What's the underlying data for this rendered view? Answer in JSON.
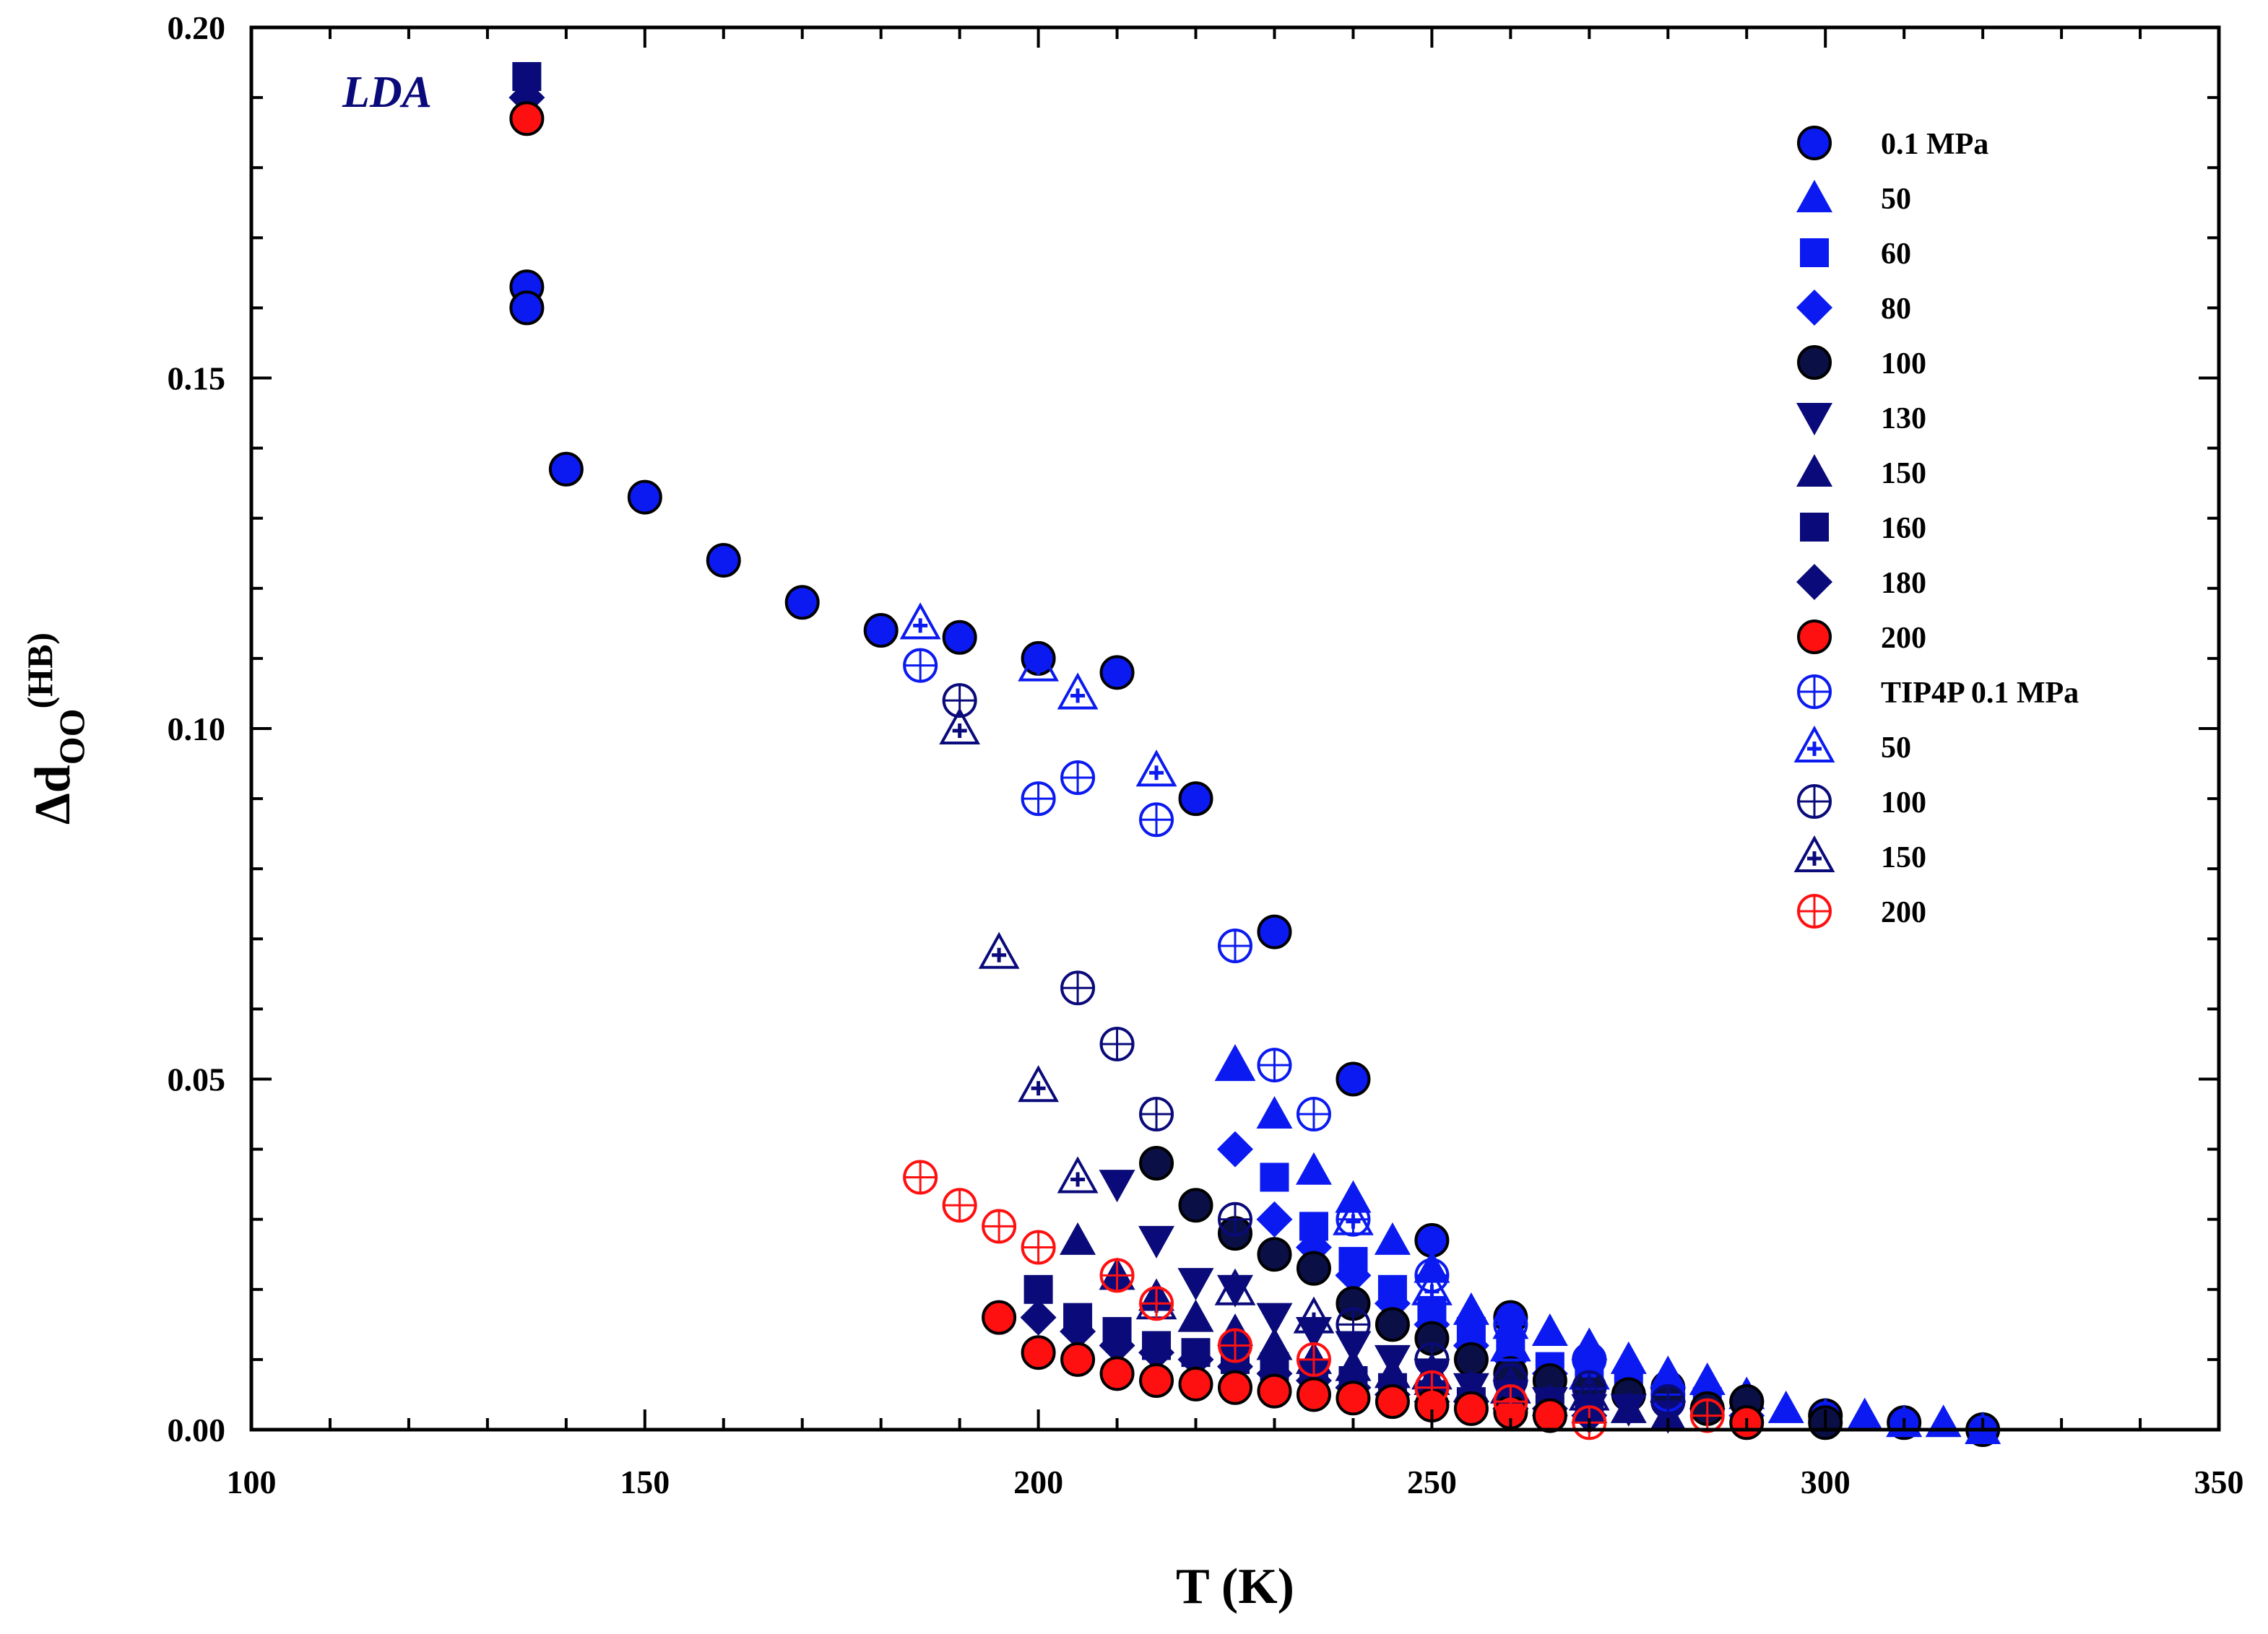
{
  "chart_data": {
    "type": "scatter",
    "title": "",
    "xlabel": "T (K)",
    "ylabel_main": "Δd",
    "ylabel_sub": "OO",
    "ylabel_sup": "(HB)",
    "xlim": [
      100,
      350
    ],
    "ylim": [
      0.0,
      0.2
    ],
    "x_ticks": [
      100,
      150,
      200,
      250,
      300,
      350
    ],
    "x_tick_labels": [
      "100",
      "150",
      "200",
      "250",
      "300",
      "350"
    ],
    "y_ticks": [
      0.0,
      0.05,
      0.1,
      0.15,
      0.2
    ],
    "y_tick_labels": [
      "0.00",
      "0.05",
      "0.10",
      "0.15",
      "0.20"
    ],
    "grid": false,
    "legend_position": "top-right",
    "annotation": "LDA",
    "colors": {
      "blue": "#0a1af0",
      "navy": "#0a0a7a",
      "red": "#ff1010",
      "darkNavy": "#0a1045"
    },
    "series": [
      {
        "name": "0.1 MPa",
        "marker": "circle",
        "fill": "#0a1af0",
        "edge": "#000000",
        "x": [
          135,
          135,
          140,
          150,
          160,
          170,
          180,
          190,
          200,
          210,
          220,
          230,
          240,
          250,
          260,
          270,
          280,
          290,
          300,
          310,
          320
        ],
        "y": [
          0.163,
          0.16,
          0.137,
          0.133,
          0.124,
          0.118,
          0.114,
          0.113,
          0.11,
          0.108,
          0.09,
          0.071,
          0.05,
          0.027,
          0.016,
          0.01,
          0.006,
          0.004,
          0.002,
          0.001,
          0.0
        ]
      },
      {
        "name": "50",
        "marker": "triangle-up",
        "fill": "#0a1af0",
        "edge": "none",
        "x": [
          225,
          230,
          235,
          240,
          245,
          250,
          255,
          260,
          265,
          270,
          275,
          280,
          285,
          290,
          295,
          300,
          305,
          310,
          315,
          320
        ],
        "y": [
          0.052,
          0.045,
          0.037,
          0.033,
          0.027,
          0.023,
          0.017,
          0.015,
          0.014,
          0.012,
          0.01,
          0.008,
          0.007,
          0.005,
          0.003,
          0.002,
          0.002,
          0.001,
          0.001,
          0.0
        ]
      },
      {
        "name": "60",
        "marker": "square",
        "fill": "#0a1af0",
        "edge": "none",
        "x": [
          230,
          235,
          240,
          245,
          250,
          255,
          260,
          265,
          270,
          275,
          280,
          285
        ],
        "y": [
          0.036,
          0.029,
          0.024,
          0.02,
          0.017,
          0.014,
          0.011,
          0.009,
          0.007,
          0.006,
          0.005,
          0.004
        ]
      },
      {
        "name": "80",
        "marker": "diamond",
        "fill": "#0a1af0",
        "edge": "none",
        "x": [
          225,
          230,
          235,
          240,
          245,
          250,
          255,
          260,
          265,
          270,
          275,
          280,
          285,
          290
        ],
        "y": [
          0.04,
          0.03,
          0.026,
          0.022,
          0.018,
          0.015,
          0.012,
          0.01,
          0.008,
          0.006,
          0.005,
          0.004,
          0.003,
          0.002
        ]
      },
      {
        "name": "100",
        "marker": "circle",
        "fill": "#0a1045",
        "edge": "#000000",
        "x": [
          215,
          220,
          225,
          230,
          235,
          240,
          245,
          250,
          255,
          260,
          265,
          270,
          275,
          280,
          285,
          290,
          300
        ],
        "y": [
          0.038,
          0.032,
          0.028,
          0.025,
          0.023,
          0.018,
          0.015,
          0.013,
          0.01,
          0.008,
          0.007,
          0.006,
          0.005,
          0.004,
          0.003,
          0.004,
          0.001
        ]
      },
      {
        "name": "130",
        "marker": "triangle-down",
        "fill": "#0a0a7a",
        "edge": "none",
        "x": [
          210,
          215,
          220,
          225,
          230,
          235,
          240,
          245,
          250,
          255,
          260,
          265,
          270,
          275,
          280
        ],
        "y": [
          0.035,
          0.027,
          0.021,
          0.02,
          0.016,
          0.014,
          0.012,
          0.01,
          0.008,
          0.006,
          0.005,
          0.004,
          0.003,
          0.003,
          0.002
        ]
      },
      {
        "name": "150",
        "marker": "triangle-up",
        "fill": "#0a0a7a",
        "edge": "none",
        "x": [
          205,
          210,
          215,
          220,
          225,
          230,
          235,
          240,
          245,
          250,
          255,
          260,
          265,
          270,
          275,
          280
        ],
        "y": [
          0.027,
          0.022,
          0.019,
          0.016,
          0.014,
          0.012,
          0.01,
          0.009,
          0.008,
          0.007,
          0.006,
          0.005,
          0.004,
          0.003,
          0.003,
          0.002
        ]
      },
      {
        "name": "160",
        "marker": "square",
        "fill": "#0a0a7a",
        "edge": "none",
        "x": [
          135,
          200,
          205,
          210,
          215,
          220,
          225,
          230,
          235,
          240,
          245,
          250,
          255,
          260,
          265,
          270
        ],
        "y": [
          0.193,
          0.02,
          0.016,
          0.014,
          0.012,
          0.011,
          0.01,
          0.009,
          0.008,
          0.007,
          0.006,
          0.005,
          0.004,
          0.004,
          0.003,
          0.003
        ]
      },
      {
        "name": "180",
        "marker": "diamond",
        "fill": "#0a0a7a",
        "edge": "none",
        "x": [
          135,
          200,
          205,
          210,
          215,
          220,
          225,
          230,
          235,
          240,
          245,
          250,
          255,
          260,
          265,
          270
        ],
        "y": [
          0.19,
          0.016,
          0.014,
          0.012,
          0.011,
          0.01,
          0.009,
          0.008,
          0.007,
          0.006,
          0.005,
          0.004,
          0.004,
          0.003,
          0.003,
          0.002
        ]
      },
      {
        "name": "200",
        "marker": "circle",
        "fill": "#ff1010",
        "edge": "#000000",
        "x": [
          135,
          195,
          200,
          205,
          210,
          215,
          220,
          225,
          230,
          235,
          240,
          245,
          250,
          255,
          260,
          265,
          290
        ],
        "y": [
          0.187,
          0.016,
          0.011,
          0.01,
          0.008,
          0.007,
          0.0065,
          0.006,
          0.0055,
          0.005,
          0.0045,
          0.004,
          0.0035,
          0.003,
          0.0025,
          0.002,
          0.001
        ]
      },
      {
        "name": "TIP4P 0.1 MPa",
        "marker": "circle-plus",
        "fill": "none",
        "edge": "#0a1af0",
        "x": [
          185,
          200,
          205,
          215,
          225,
          230,
          235,
          240,
          250,
          260,
          270,
          280
        ],
        "y": [
          0.109,
          0.09,
          0.093,
          0.087,
          0.069,
          0.052,
          0.045,
          0.03,
          0.022,
          0.015,
          0.01,
          0.005
        ]
      },
      {
        "name": "50",
        "marker": "triangle-plus",
        "fill": "none",
        "edge": "#0a1af0",
        "x": [
          185,
          200,
          205,
          215,
          225,
          240,
          250,
          260,
          270
        ],
        "y": [
          0.115,
          0.109,
          0.105,
          0.094,
          0.052,
          0.03,
          0.02,
          0.012,
          0.008
        ]
      },
      {
        "name": "100",
        "marker": "circle-plus",
        "fill": "none",
        "edge": "#0a0a7a",
        "x": [
          190,
          205,
          210,
          215,
          225,
          240,
          250,
          260,
          270,
          280
        ],
        "y": [
          0.104,
          0.063,
          0.055,
          0.045,
          0.03,
          0.015,
          0.01,
          0.007,
          0.006,
          0.004
        ]
      },
      {
        "name": "150",
        "marker": "triangle-plus",
        "fill": "none",
        "edge": "#0a0a7a",
        "x": [
          190,
          195,
          200,
          205,
          215,
          225,
          235,
          250,
          260,
          270
        ],
        "y": [
          0.1,
          0.068,
          0.049,
          0.036,
          0.018,
          0.02,
          0.016,
          0.008,
          0.006,
          0.005
        ]
      },
      {
        "name": "200",
        "marker": "circle-plus",
        "fill": "none",
        "edge": "#ff1010",
        "x": [
          185,
          190,
          195,
          200,
          210,
          215,
          225,
          235,
          250,
          260,
          270,
          285
        ],
        "y": [
          0.036,
          0.032,
          0.029,
          0.026,
          0.022,
          0.018,
          0.012,
          0.01,
          0.006,
          0.004,
          0.001,
          0.002
        ]
      }
    ]
  }
}
